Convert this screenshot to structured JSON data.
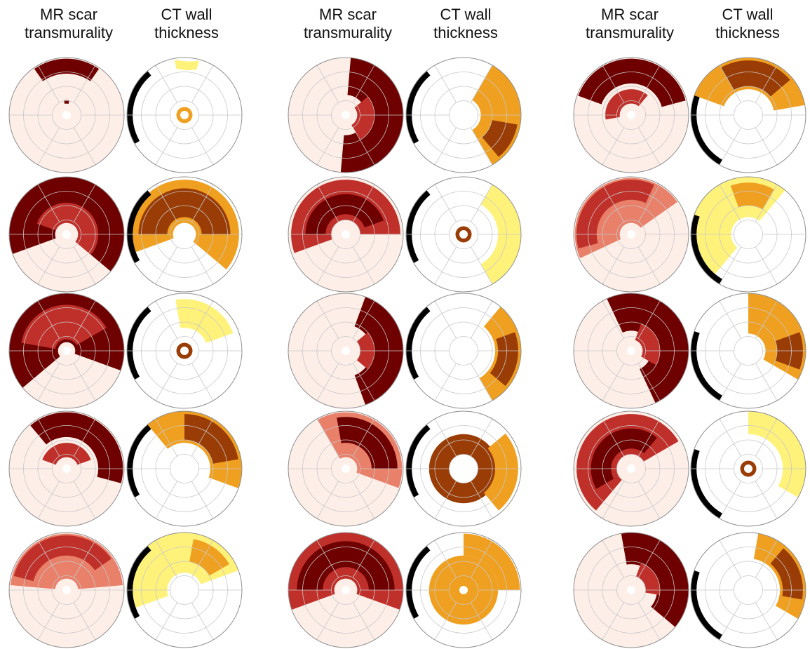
{
  "column_headers": [
    {
      "line1": "MR scar",
      "line2": "transmurality"
    },
    {
      "line1": "CT wall",
      "line2": "thickness"
    },
    {
      "line1": "MR scar",
      "line2": "transmurality"
    },
    {
      "line1": "CT wall",
      "line2": "thickness"
    },
    {
      "line1": "MR scar",
      "line2": "transmurality"
    },
    {
      "line1": "CT wall",
      "line2": "thickness"
    }
  ],
  "colors": {
    "mr_background": "#fdeee8",
    "mr_scar_light": "#e8806a",
    "mr_scar_mid": "#c0302a",
    "mr_scar_dark": "#6e0000",
    "ct_light": "#fff27a",
    "ct_mid": "#f0a020",
    "ct_dark": "#9a3c05",
    "ct_black": "#000000",
    "grid": "#c8c8c8"
  },
  "patients": [
    {
      "mr": [
        [
          -125,
          -55,
          0.72,
          0.98,
          "dark"
        ],
        [
          -100,
          -80,
          0.2,
          0.26,
          "dark"
        ]
      ],
      "ct": [
        [
          -75,
          -100,
          0.82,
          0.98,
          "light"
        ],
        [
          0,
          360,
          0.0,
          0.14,
          "mid"
        ],
        [
          150,
          230,
          0.9,
          1.0,
          "black"
        ]
      ]
    },
    {
      "mr": [
        [
          -200,
          40,
          0.2,
          1.0,
          "dark"
        ],
        [
          -160,
          40,
          0.2,
          0.55,
          "mid"
        ]
      ],
      "ct": [
        [
          -200,
          40,
          0.2,
          0.95,
          "mid"
        ],
        [
          -180,
          0,
          0.3,
          0.8,
          "dark"
        ],
        [
          150,
          230,
          0.9,
          1.0,
          "black"
        ]
      ]
    },
    {
      "mr": [
        [
          -220,
          20,
          0.15,
          1.0,
          "dark"
        ],
        [
          -170,
          -30,
          0.2,
          0.8,
          "mid"
        ]
      ],
      "ct": [
        [
          -100,
          -20,
          0.4,
          0.9,
          "light"
        ],
        [
          0,
          360,
          0.0,
          0.14,
          "dark"
        ],
        [
          150,
          230,
          0.9,
          1.0,
          "black"
        ]
      ]
    },
    {
      "mr": [
        [
          -130,
          15,
          0.55,
          0.98,
          "dark"
        ],
        [
          -160,
          -20,
          0.2,
          0.45,
          "mid"
        ]
      ],
      "ct": [
        [
          -130,
          20,
          0.45,
          1.0,
          "mid"
        ],
        [
          -90,
          -10,
          0.5,
          0.95,
          "dark"
        ],
        [
          150,
          230,
          0.9,
          1.0,
          "black"
        ]
      ]
    },
    {
      "mr": [
        [
          -175,
          -5,
          0.2,
          0.98,
          "light"
        ],
        [
          -165,
          -35,
          0.6,
          0.95,
          "mid"
        ]
      ],
      "ct": [
        [
          -200,
          -20,
          0.3,
          1.0,
          "light"
        ],
        [
          -80,
          -30,
          0.5,
          0.9,
          "mid"
        ],
        [
          150,
          230,
          0.9,
          1.0,
          "black"
        ]
      ]
    },
    {
      "mr": [
        [
          -85,
          95,
          0.35,
          1.0,
          "dark"
        ],
        [
          -40,
          60,
          0.2,
          0.5,
          "mid"
        ]
      ],
      "ct": [
        [
          -60,
          60,
          0.3,
          1.0,
          "mid"
        ],
        [
          10,
          50,
          0.5,
          0.95,
          "dark"
        ],
        [
          150,
          230,
          0.9,
          1.0,
          "black"
        ]
      ]
    },
    {
      "mr": [
        [
          -200,
          0,
          0.25,
          0.95,
          "mid"
        ],
        [
          -180,
          -20,
          0.35,
          0.7,
          "dark"
        ]
      ],
      "ct": [
        [
          0,
          360,
          0.0,
          0.14,
          "dark"
        ],
        [
          -60,
          60,
          0.6,
          1.0,
          "light"
        ],
        [
          150,
          230,
          0.9,
          1.0,
          "black"
        ]
      ]
    },
    {
      "mr": [
        [
          -70,
          70,
          0.45,
          1.0,
          "dark"
        ],
        [
          -40,
          40,
          0.25,
          0.5,
          "mid"
        ]
      ],
      "ct": [
        [
          -50,
          60,
          0.55,
          1.0,
          "mid"
        ],
        [
          -20,
          40,
          0.6,
          0.95,
          "dark"
        ],
        [
          150,
          230,
          0.9,
          1.0,
          "black"
        ]
      ]
    },
    {
      "mr": [
        [
          -120,
          20,
          0.2,
          0.98,
          "light"
        ],
        [
          -100,
          0,
          0.45,
          0.9,
          "dark"
        ]
      ],
      "ct": [
        [
          0,
          360,
          0.25,
          0.6,
          "dark"
        ],
        [
          -40,
          50,
          0.55,
          0.95,
          "mid"
        ],
        [
          150,
          230,
          0.9,
          1.0,
          "black"
        ]
      ]
    },
    {
      "mr": [
        [
          -200,
          20,
          0.2,
          1.0,
          "mid"
        ],
        [
          -180,
          0,
          0.4,
          0.85,
          "dark"
        ]
      ],
      "ct": [
        [
          0,
          360,
          0.0,
          0.6,
          "mid"
        ],
        [
          -90,
          0,
          0.6,
          0.98,
          "mid"
        ],
        [
          150,
          230,
          0.9,
          1.0,
          "black"
        ]
      ]
    }
  ]
}
